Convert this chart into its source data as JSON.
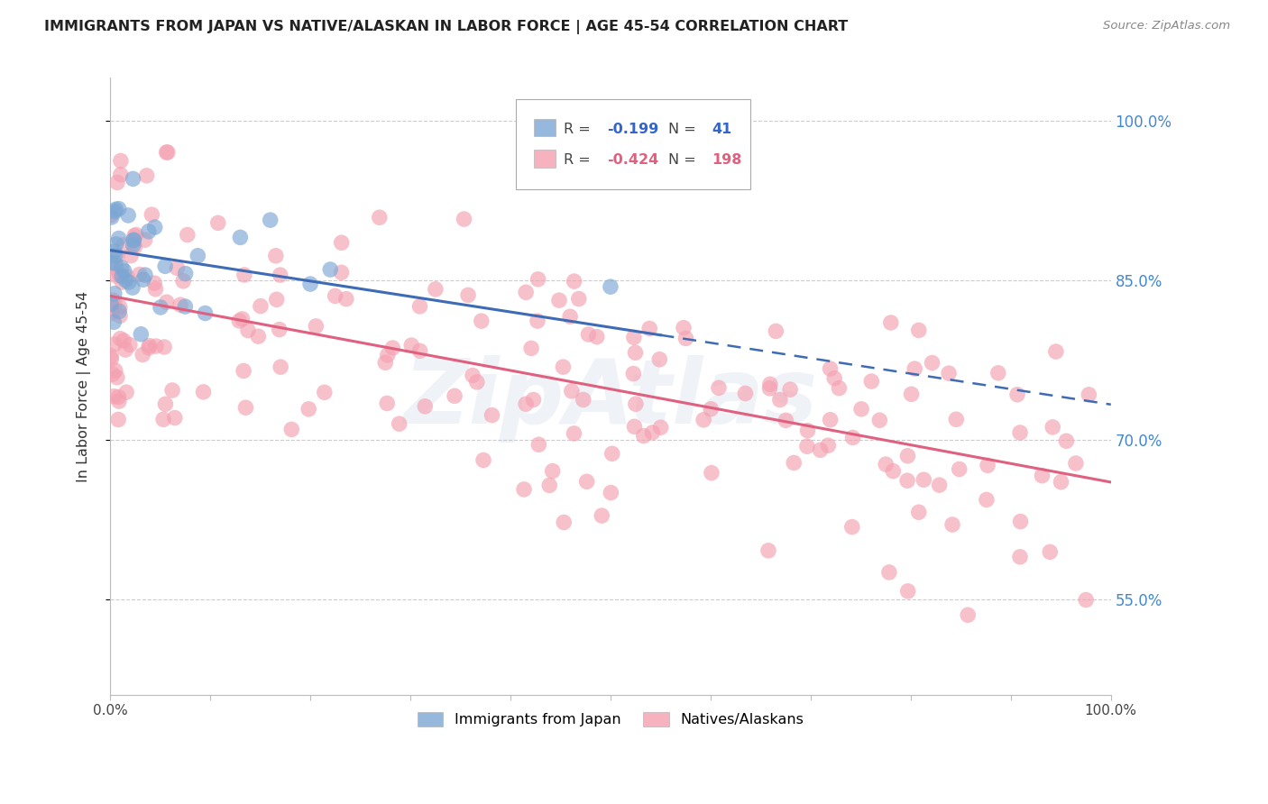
{
  "title": "IMMIGRANTS FROM JAPAN VS NATIVE/ALASKAN IN LABOR FORCE | AGE 45-54 CORRELATION CHART",
  "source": "Source: ZipAtlas.com",
  "ylabel": "In Labor Force | Age 45-54",
  "xlim": [
    0.0,
    1.0
  ],
  "ylim": [
    0.46,
    1.04
  ],
  "yticks": [
    0.55,
    0.7,
    0.85,
    1.0
  ],
  "ytick_labels": [
    "55.0%",
    "70.0%",
    "85.0%",
    "100.0%"
  ],
  "xtick_labels": [
    "0.0%",
    "100.0%"
  ],
  "blue_R": -0.199,
  "blue_N": 41,
  "pink_R": -0.424,
  "pink_N": 198,
  "blue_color": "#7BA7D4",
  "pink_color": "#F4A0B0",
  "blue_line_color": "#3D6BB5",
  "pink_line_color": "#E06080",
  "legend_blue_label": "Immigrants from Japan",
  "legend_pink_label": "Natives/Alaskans",
  "watermark": "ZipAtlas",
  "blue_seed": 42,
  "pink_seed": 7,
  "blue_line_solid_end": 0.55,
  "blue_intercept": 0.878,
  "blue_slope": -0.145,
  "pink_intercept": 0.835,
  "pink_slope": -0.175
}
